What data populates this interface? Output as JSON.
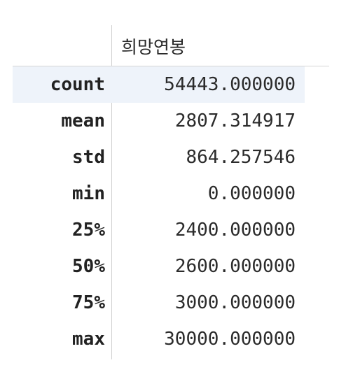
{
  "table": {
    "column_header": "희망연봉",
    "rows": [
      {
        "label": "count",
        "value": "54443.000000"
      },
      {
        "label": "mean",
        "value": "2807.314917"
      },
      {
        "label": "std",
        "value": "864.257546"
      },
      {
        "label": "min",
        "value": "0.000000"
      },
      {
        "label": "25%",
        "value": "2400.000000"
      },
      {
        "label": "50%",
        "value": "2600.000000"
      },
      {
        "label": "75%",
        "value": "3000.000000"
      },
      {
        "label": "max",
        "value": "30000.000000"
      }
    ]
  },
  "colors": {
    "highlight_row": "#eef3fa",
    "divider": "#d0d0d0"
  }
}
